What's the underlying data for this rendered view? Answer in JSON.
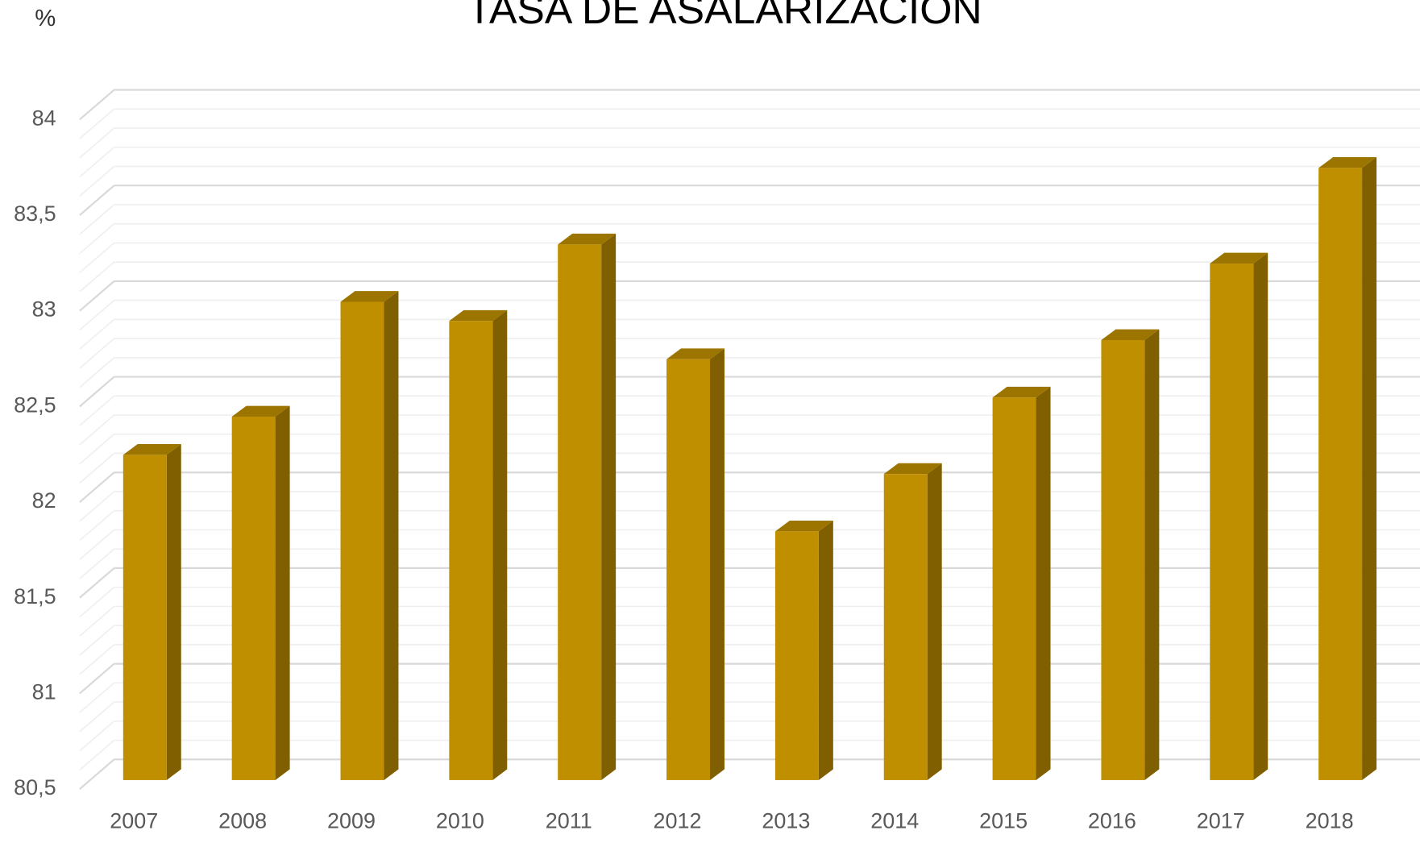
{
  "chart_data": {
    "type": "bar",
    "title": "TASA DE ASALARIZACIÓN",
    "y_label": "%",
    "categories": [
      "2007",
      "2008",
      "2009",
      "2010",
      "2011",
      "2012",
      "2013",
      "2014",
      "2015",
      "2016",
      "2017",
      "2018"
    ],
    "values": [
      82.2,
      82.4,
      83.0,
      82.9,
      83.3,
      82.7,
      81.8,
      82.1,
      82.5,
      82.8,
      83.2,
      83.7
    ],
    "color": "#bf8f00",
    "ylim": [
      80.5,
      84
    ],
    "yticks": [
      {
        "value": 80.5,
        "label": "80,5"
      },
      81,
      {
        "value": 81.5,
        "label": "81,5"
      },
      82,
      {
        "value": 82.5,
        "label": "82,5"
      },
      83,
      {
        "value": 83.5,
        "label": "83,5"
      },
      84
    ],
    "grid": true
  }
}
